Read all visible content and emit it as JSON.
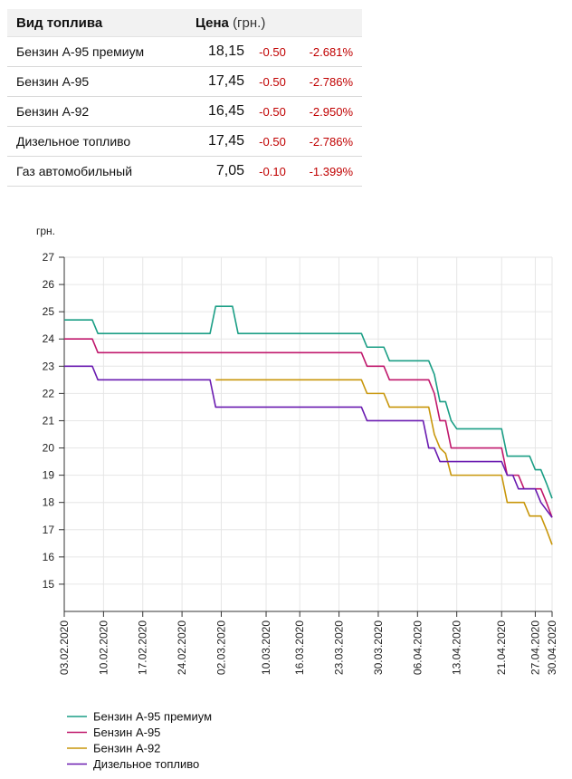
{
  "table": {
    "headers": {
      "fuel": "Вид топлива",
      "price": "Цена",
      "unit": "(грн.)"
    },
    "rows": [
      {
        "name": "Бензин А-95 премиум",
        "price": "18,15",
        "change": "-0.50",
        "pct": "-2.681%"
      },
      {
        "name": "Бензин А-95",
        "price": "17,45",
        "change": "-0.50",
        "pct": "-2.786%"
      },
      {
        "name": "Бензин А-92",
        "price": "16,45",
        "change": "-0.50",
        "pct": "-2.950%"
      },
      {
        "name": "Дизельное топливо",
        "price": "17,45",
        "change": "-0.50",
        "pct": "-2.786%"
      },
      {
        "name": "Газ автомобильный",
        "price": "7,05",
        "change": "-0.10",
        "pct": "-1.399%"
      }
    ],
    "colors": {
      "negative": "#c00000",
      "header_bg": "#f2f2f2"
    }
  },
  "chart_data": {
    "type": "line",
    "title": "",
    "xlabel": "",
    "ylabel": "грн.",
    "x_range": [
      "2020-02-03",
      "2020-04-30"
    ],
    "ylim": [
      14,
      27
    ],
    "yticks": [
      15,
      16,
      17,
      18,
      19,
      20,
      21,
      22,
      23,
      24,
      25,
      26,
      27
    ],
    "xticks": [
      "2020-02-03",
      "2020-02-10",
      "2020-02-17",
      "2020-02-24",
      "2020-03-02",
      "2020-03-10",
      "2020-03-16",
      "2020-03-23",
      "2020-03-30",
      "2020-04-06",
      "2020-04-13",
      "2020-04-21",
      "2020-04-27",
      "2020-04-30"
    ],
    "xtick_labels": [
      "03.02.2020",
      "10.02.2020",
      "17.02.2020",
      "24.02.2020",
      "02.03.2020",
      "10.03.2020",
      "16.03.2020",
      "23.03.2020",
      "30.03.2020",
      "06.04.2020",
      "13.04.2020",
      "21.04.2020",
      "27.04.2020",
      "30.04.2020"
    ],
    "grid": true,
    "legend_position": "bottom-left",
    "series": [
      {
        "name": "Бензин А-95 премиум",
        "color": "#1a9e85",
        "points": [
          [
            "2020-02-03",
            24.7
          ],
          [
            "2020-02-08",
            24.7
          ],
          [
            "2020-02-09",
            24.2
          ],
          [
            "2020-02-29",
            24.2
          ],
          [
            "2020-03-01",
            25.2
          ],
          [
            "2020-03-04",
            25.2
          ],
          [
            "2020-03-05",
            24.2
          ],
          [
            "2020-03-27",
            24.2
          ],
          [
            "2020-03-28",
            23.7
          ],
          [
            "2020-03-31",
            23.7
          ],
          [
            "2020-04-01",
            23.2
          ],
          [
            "2020-04-08",
            23.2
          ],
          [
            "2020-04-09",
            22.7
          ],
          [
            "2020-04-10",
            21.7
          ],
          [
            "2020-04-11",
            21.7
          ],
          [
            "2020-04-12",
            21.0
          ],
          [
            "2020-04-13",
            20.7
          ],
          [
            "2020-04-21",
            20.7
          ],
          [
            "2020-04-22",
            19.7
          ],
          [
            "2020-04-24",
            19.7
          ],
          [
            "2020-04-26",
            19.7
          ],
          [
            "2020-04-27",
            19.2
          ],
          [
            "2020-04-28",
            19.2
          ],
          [
            "2020-04-29",
            18.7
          ],
          [
            "2020-04-30",
            18.15
          ]
        ]
      },
      {
        "name": "Бензин А-95",
        "color": "#c0186c",
        "points": [
          [
            "2020-02-03",
            24.0
          ],
          [
            "2020-02-08",
            24.0
          ],
          [
            "2020-02-09",
            23.5
          ],
          [
            "2020-03-27",
            23.5
          ],
          [
            "2020-03-28",
            23.0
          ],
          [
            "2020-03-31",
            23.0
          ],
          [
            "2020-04-01",
            22.5
          ],
          [
            "2020-04-08",
            22.5
          ],
          [
            "2020-04-09",
            22.0
          ],
          [
            "2020-04-10",
            21.0
          ],
          [
            "2020-04-11",
            21.0
          ],
          [
            "2020-04-12",
            20.0
          ],
          [
            "2020-04-21",
            20.0
          ],
          [
            "2020-04-22",
            19.0
          ],
          [
            "2020-04-24",
            19.0
          ],
          [
            "2020-04-25",
            18.5
          ],
          [
            "2020-04-28",
            18.5
          ],
          [
            "2020-04-29",
            18.0
          ],
          [
            "2020-04-30",
            17.45
          ]
        ]
      },
      {
        "name": "Бензин А-92",
        "color": "#c8960a",
        "points": [
          [
            "2020-03-01",
            22.5
          ],
          [
            "2020-03-27",
            22.5
          ],
          [
            "2020-03-28",
            22.0
          ],
          [
            "2020-03-31",
            22.0
          ],
          [
            "2020-04-01",
            21.5
          ],
          [
            "2020-04-08",
            21.5
          ],
          [
            "2020-04-09",
            20.5
          ],
          [
            "2020-04-10",
            20.0
          ],
          [
            "2020-04-11",
            19.8
          ],
          [
            "2020-04-12",
            19.0
          ],
          [
            "2020-04-21",
            19.0
          ],
          [
            "2020-04-22",
            18.0
          ],
          [
            "2020-04-25",
            18.0
          ],
          [
            "2020-04-26",
            17.5
          ],
          [
            "2020-04-28",
            17.5
          ],
          [
            "2020-04-29",
            17.0
          ],
          [
            "2020-04-30",
            16.45
          ]
        ]
      },
      {
        "name": "Дизельное топливо",
        "color": "#6a1bb0",
        "points": [
          [
            "2020-02-03",
            23.0
          ],
          [
            "2020-02-08",
            23.0
          ],
          [
            "2020-02-09",
            22.5
          ],
          [
            "2020-02-29",
            22.5
          ],
          [
            "2020-03-01",
            21.5
          ],
          [
            "2020-03-27",
            21.5
          ],
          [
            "2020-03-28",
            21.0
          ],
          [
            "2020-04-07",
            21.0
          ],
          [
            "2020-04-08",
            20.0
          ],
          [
            "2020-04-09",
            20.0
          ],
          [
            "2020-04-10",
            19.5
          ],
          [
            "2020-04-21",
            19.5
          ],
          [
            "2020-04-22",
            19.0
          ],
          [
            "2020-04-23",
            19.0
          ],
          [
            "2020-04-24",
            18.5
          ],
          [
            "2020-04-27",
            18.5
          ],
          [
            "2020-04-28",
            18.0
          ],
          [
            "2020-04-30",
            17.45
          ]
        ]
      }
    ]
  }
}
